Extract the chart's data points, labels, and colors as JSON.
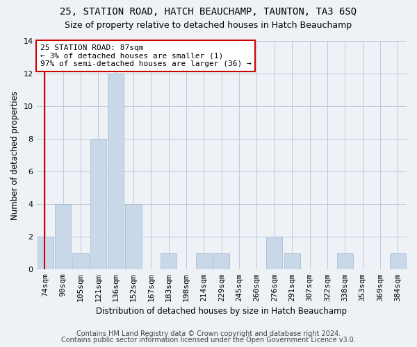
{
  "title1": "25, STATION ROAD, HATCH BEAUCHAMP, TAUNTON, TA3 6SQ",
  "title2": "Size of property relative to detached houses in Hatch Beauchamp",
  "xlabel": "Distribution of detached houses by size in Hatch Beauchamp",
  "ylabel": "Number of detached properties",
  "categories": [
    "74sqm",
    "90sqm",
    "105sqm",
    "121sqm",
    "136sqm",
    "152sqm",
    "167sqm",
    "183sqm",
    "198sqm",
    "214sqm",
    "229sqm",
    "245sqm",
    "260sqm",
    "276sqm",
    "291sqm",
    "307sqm",
    "322sqm",
    "338sqm",
    "353sqm",
    "369sqm",
    "384sqm"
  ],
  "values": [
    2,
    4,
    1,
    8,
    12,
    4,
    0,
    1,
    0,
    1,
    1,
    0,
    0,
    2,
    1,
    0,
    0,
    1,
    0,
    0,
    1
  ],
  "bar_color": "#c8d8e8",
  "bar_edge_color": "#a0b8cc",
  "annotation_text": "25 STATION ROAD: 87sqm\n← 3% of detached houses are smaller (1)\n97% of semi-detached houses are larger (36) →",
  "vline_x_index": 0,
  "ylim": [
    0,
    14
  ],
  "yticks": [
    0,
    2,
    4,
    6,
    8,
    10,
    12,
    14
  ],
  "footer1": "Contains HM Land Registry data © Crown copyright and database right 2024.",
  "footer2": "Contains public sector information licensed under the Open Government Licence v3.0.",
  "background_color": "#eef2f7",
  "grid_color": "#c0c8d8",
  "annotation_box_color": "#ffffff",
  "annotation_box_edge": "#cc0000",
  "vline_color": "#cc0000",
  "title1_fontsize": 10,
  "title2_fontsize": 9,
  "xlabel_fontsize": 8.5,
  "ylabel_fontsize": 8.5,
  "footer_fontsize": 7,
  "tick_fontsize": 8,
  "annot_fontsize": 8
}
